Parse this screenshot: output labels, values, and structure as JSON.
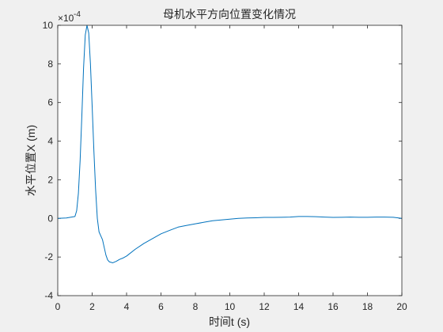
{
  "chart_data": {
    "type": "line",
    "title": "母机水平方向位置变化情况",
    "xlabel": "时间t (s)",
    "ylabel": "水平位置X (m)",
    "y_exponent_label": "×10",
    "y_exponent_power": "-4",
    "xlim": [
      0,
      20
    ],
    "ylim": [
      -4,
      10
    ],
    "x_ticks": [
      0,
      2,
      4,
      6,
      8,
      10,
      12,
      14,
      16,
      18,
      20
    ],
    "y_ticks": [
      -4,
      -2,
      0,
      2,
      4,
      6,
      8,
      10
    ],
    "grid": false,
    "legend": "none",
    "series": [
      {
        "color": "#0072bd",
        "x": [
          0,
          0.5,
          1.0,
          1.1,
          1.2,
          1.3,
          1.4,
          1.5,
          1.6,
          1.7,
          1.8,
          1.9,
          2.0,
          2.1,
          2.2,
          2.3,
          2.4,
          2.5,
          2.6,
          2.7,
          2.8,
          2.9,
          3.0,
          3.2,
          3.4,
          3.6,
          3.8,
          4.0,
          4.5,
          5.0,
          5.5,
          6.0,
          6.5,
          7.0,
          7.5,
          8.0,
          8.5,
          9.0,
          9.5,
          10.0,
          10.5,
          11.0,
          11.5,
          12.0,
          12.5,
          13.0,
          13.5,
          14.0,
          14.5,
          15.0,
          15.5,
          16.0,
          16.5,
          17.0,
          17.5,
          18.0,
          18.5,
          19.0,
          19.5,
          20.0
        ],
        "y": [
          0,
          0.02,
          0.1,
          0.4,
          1.3,
          3.0,
          5.3,
          7.8,
          9.5,
          10.0,
          9.6,
          8.0,
          5.8,
          3.5,
          1.5,
          0.0,
          -0.7,
          -0.9,
          -1.1,
          -1.5,
          -1.9,
          -2.15,
          -2.25,
          -2.3,
          -2.22,
          -2.12,
          -2.05,
          -1.95,
          -1.6,
          -1.3,
          -1.05,
          -0.8,
          -0.62,
          -0.45,
          -0.36,
          -0.28,
          -0.2,
          -0.12,
          -0.08,
          -0.04,
          0.0,
          0.02,
          0.03,
          0.05,
          0.05,
          0.06,
          0.07,
          0.1,
          0.1,
          0.09,
          0.07,
          0.05,
          0.06,
          0.07,
          0.06,
          0.06,
          0.07,
          0.07,
          0.06,
          0.0
        ]
      }
    ]
  }
}
